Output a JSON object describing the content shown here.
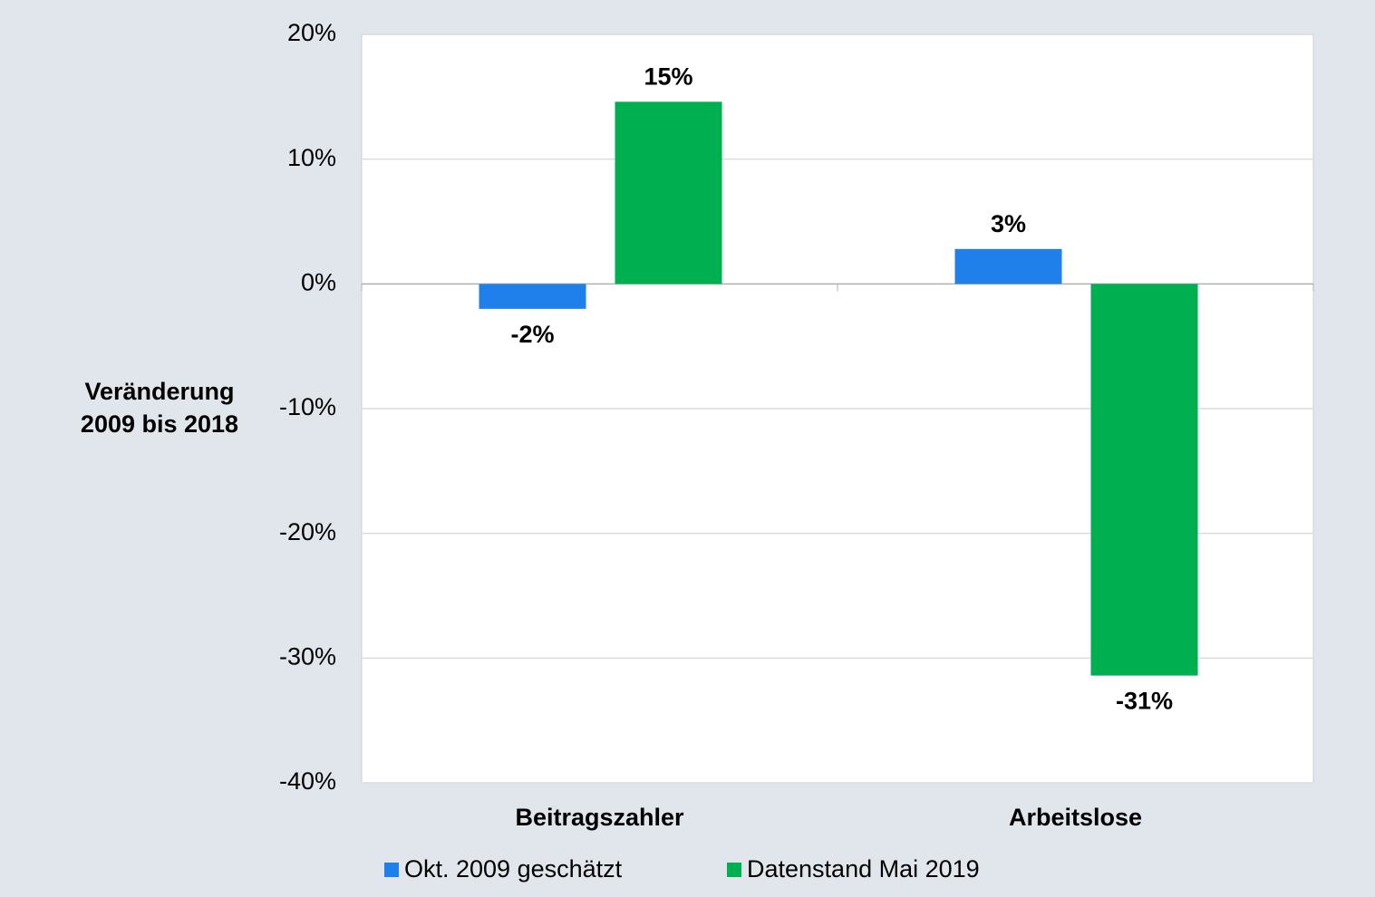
{
  "chart_data": {
    "type": "bar",
    "ylabel": [
      "Veränderung",
      "2009 bis 2018"
    ],
    "categories": [
      "Beitragszahler",
      "Arbeitslose"
    ],
    "series": [
      {
        "name": "Okt. 2009 geschätzt",
        "color": "#1f80eb",
        "values": [
          -2.0,
          2.8
        ],
        "value_labels": [
          "-2%",
          "3%"
        ]
      },
      {
        "name": "Datenstand Mai 2019",
        "color": "#00b050",
        "values": [
          14.6,
          -31.4
        ],
        "value_labels": [
          "15%",
          "-31%"
        ]
      }
    ],
    "ylim": [
      -40,
      20
    ],
    "yticks": [
      {
        "value": -40,
        "label": "-40%"
      },
      {
        "value": -30,
        "label": "-30%"
      },
      {
        "value": -20,
        "label": "-20%"
      },
      {
        "value": -10,
        "label": "-10%"
      },
      {
        "value": 0,
        "label": "0%"
      },
      {
        "value": 10,
        "label": "10%"
      },
      {
        "value": 20,
        "label": "20%"
      }
    ],
    "grid": true,
    "legend": "bottom"
  }
}
